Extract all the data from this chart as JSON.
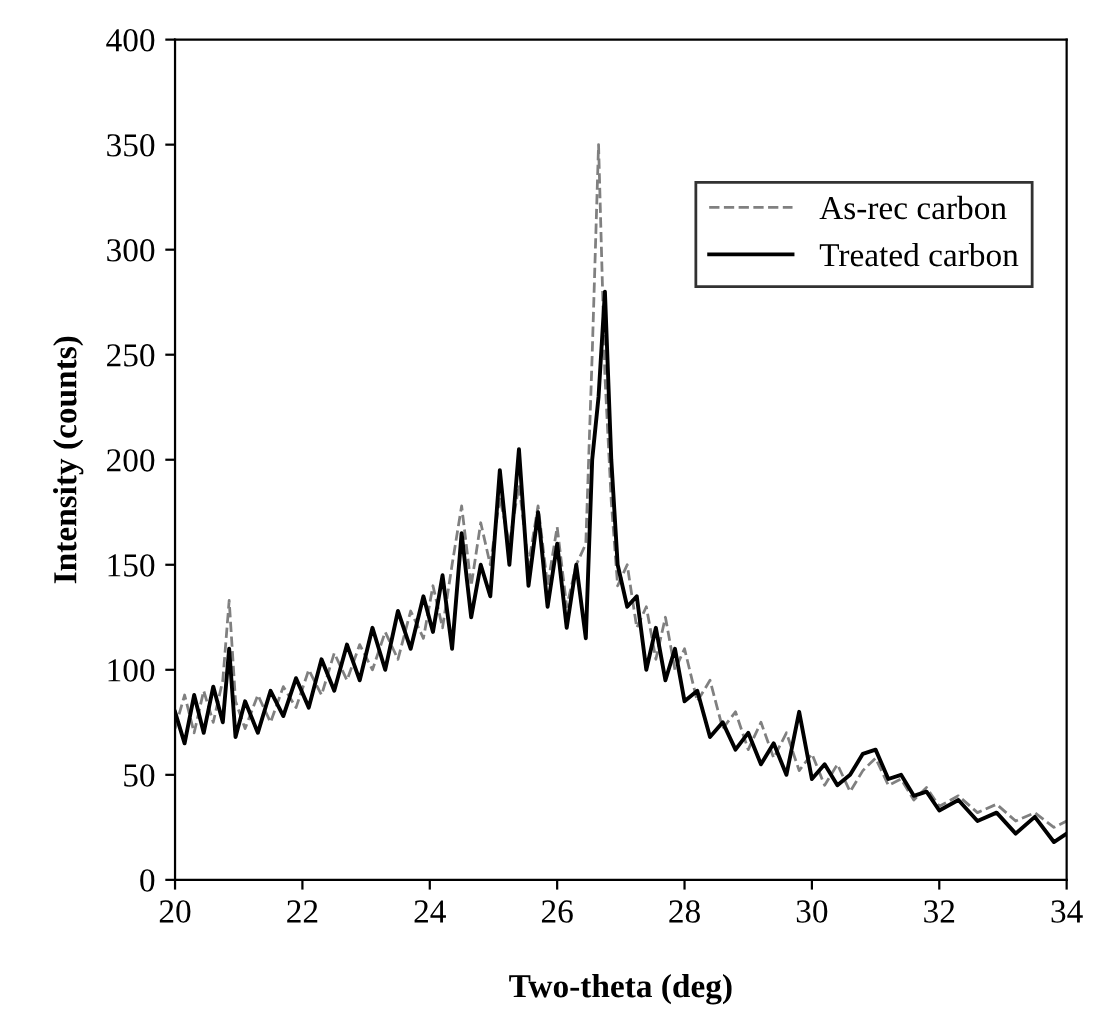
{
  "chart_data": {
    "type": "line",
    "xlabel": "Two-theta (deg)",
    "ylabel": "Intensity (counts)",
    "xlim": [
      20,
      34
    ],
    "ylim": [
      0,
      400
    ],
    "xticks": [
      20,
      22,
      24,
      26,
      28,
      30,
      32,
      34
    ],
    "yticks": [
      0,
      50,
      100,
      150,
      200,
      250,
      300,
      350,
      400
    ],
    "grid": false,
    "legend": "top right",
    "series": [
      {
        "name": "As-rec carbon",
        "color": "#808080",
        "line_style": "dashed",
        "x": [
          20,
          20.15,
          20.3,
          20.45,
          20.6,
          20.75,
          20.85,
          20.95,
          21.1,
          21.3,
          21.5,
          21.7,
          21.9,
          22.1,
          22.3,
          22.5,
          22.7,
          22.9,
          23.1,
          23.3,
          23.5,
          23.7,
          23.9,
          24.05,
          24.2,
          24.35,
          24.5,
          24.65,
          24.8,
          24.95,
          25.1,
          25.25,
          25.4,
          25.55,
          25.7,
          25.85,
          26,
          26.15,
          26.3,
          26.45,
          26.55,
          26.65,
          26.75,
          26.85,
          26.95,
          27.1,
          27.25,
          27.4,
          27.55,
          27.7,
          27.85,
          28,
          28.2,
          28.4,
          28.6,
          28.8,
          29,
          29.2,
          29.4,
          29.6,
          29.8,
          30,
          30.2,
          30.4,
          30.6,
          30.8,
          31,
          31.2,
          31.4,
          31.6,
          31.8,
          32,
          32.3,
          32.6,
          32.9,
          33.2,
          33.5,
          33.8,
          34
        ],
        "values": [
          72,
          88,
          70,
          90,
          75,
          95,
          133,
          85,
          72,
          88,
          75,
          92,
          82,
          100,
          88,
          108,
          95,
          112,
          100,
          118,
          105,
          128,
          115,
          140,
          120,
          150,
          178,
          140,
          170,
          150,
          182,
          160,
          188,
          150,
          178,
          140,
          168,
          130,
          150,
          160,
          250,
          350,
          240,
          180,
          140,
          150,
          120,
          130,
          105,
          125,
          100,
          110,
          85,
          95,
          72,
          80,
          62,
          75,
          58,
          70,
          52,
          60,
          45,
          55,
          42,
          52,
          58,
          45,
          48,
          38,
          44,
          35,
          40,
          32,
          36,
          28,
          32,
          25,
          28
        ]
      },
      {
        "name": "Treated carbon",
        "color": "#000000",
        "line_style": "solid",
        "x": [
          20,
          20.15,
          20.3,
          20.45,
          20.6,
          20.75,
          20.85,
          20.95,
          21.1,
          21.3,
          21.5,
          21.7,
          21.9,
          22.1,
          22.3,
          22.5,
          22.7,
          22.9,
          23.1,
          23.3,
          23.5,
          23.7,
          23.9,
          24.05,
          24.2,
          24.35,
          24.5,
          24.65,
          24.8,
          24.95,
          25.1,
          25.25,
          25.4,
          25.55,
          25.7,
          25.85,
          26,
          26.15,
          26.3,
          26.45,
          26.55,
          26.65,
          26.75,
          26.85,
          26.95,
          27.1,
          27.25,
          27.4,
          27.55,
          27.7,
          27.85,
          28,
          28.2,
          28.4,
          28.6,
          28.8,
          29,
          29.2,
          29.4,
          29.6,
          29.8,
          30,
          30.2,
          30.4,
          30.6,
          30.8,
          31,
          31.2,
          31.4,
          31.6,
          31.8,
          32,
          32.3,
          32.6,
          32.9,
          33.2,
          33.5,
          33.8,
          34
        ],
        "values": [
          80,
          65,
          88,
          70,
          92,
          75,
          110,
          68,
          85,
          70,
          90,
          78,
          96,
          82,
          105,
          90,
          112,
          95,
          120,
          100,
          128,
          110,
          135,
          118,
          145,
          110,
          165,
          125,
          150,
          135,
          195,
          150,
          205,
          140,
          175,
          130,
          160,
          120,
          150,
          115,
          200,
          230,
          280,
          200,
          150,
          130,
          135,
          100,
          120,
          95,
          110,
          85,
          90,
          68,
          75,
          62,
          70,
          55,
          65,
          50,
          80,
          48,
          55,
          45,
          50,
          60,
          62,
          48,
          50,
          40,
          42,
          33,
          38,
          28,
          32,
          22,
          30,
          18,
          22
        ]
      }
    ]
  }
}
